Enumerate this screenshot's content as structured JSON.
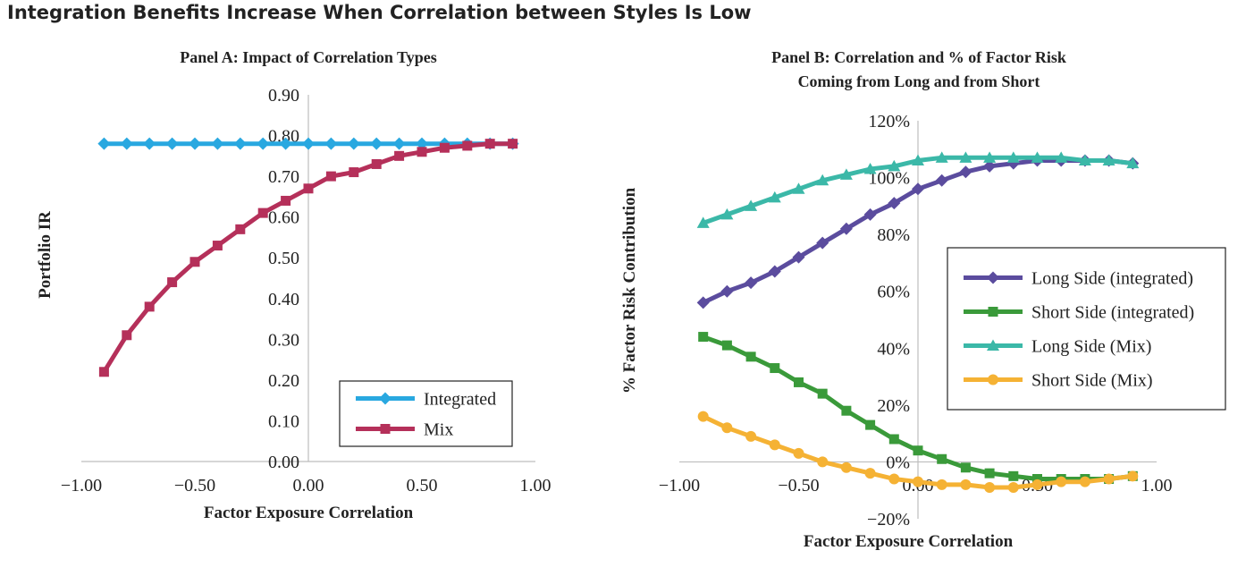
{
  "figure_title": "Integration Benefits Increase When Correlation between Styles Is Low",
  "chart_data": [
    {
      "type": "line",
      "title": "Panel A: Impact of Correlation Types",
      "xlabel": "Factor Exposure Correlation",
      "ylabel": "Portfolio IR",
      "xlim": [
        -1.0,
        1.0
      ],
      "ylim": [
        0.0,
        0.9
      ],
      "x_ticks": [
        "−1.00",
        "−0.50",
        "0.00",
        "0.50",
        "1.00"
      ],
      "y_ticks": [
        "0.00",
        "0.10",
        "0.20",
        "0.30",
        "0.40",
        "0.50",
        "0.60",
        "0.70",
        "0.80",
        "0.90"
      ],
      "grid": false,
      "legend_position": "bottom-right",
      "x": [
        -0.9,
        -0.8,
        -0.7,
        -0.6,
        -0.5,
        -0.4,
        -0.3,
        -0.2,
        -0.1,
        0.0,
        0.1,
        0.2,
        0.3,
        0.4,
        0.5,
        0.6,
        0.7,
        0.8,
        0.9
      ],
      "series": [
        {
          "name": "Integrated",
          "color": "#29a8e0",
          "marker": "diamond",
          "values": [
            0.78,
            0.78,
            0.78,
            0.78,
            0.78,
            0.78,
            0.78,
            0.78,
            0.78,
            0.78,
            0.78,
            0.78,
            0.78,
            0.78,
            0.78,
            0.78,
            0.78,
            0.78,
            0.78
          ]
        },
        {
          "name": "Mix",
          "color": "#b5305a",
          "marker": "square",
          "values": [
            0.22,
            0.31,
            0.38,
            0.44,
            0.49,
            0.53,
            0.57,
            0.61,
            0.64,
            0.67,
            0.7,
            0.71,
            0.73,
            0.75,
            0.76,
            0.77,
            0.775,
            0.78,
            0.78
          ]
        }
      ]
    },
    {
      "type": "line",
      "title": [
        "Panel B: Correlation and % of Factor Risk",
        "Coming from Long and from Short"
      ],
      "xlabel": "Factor Exposure Correlation",
      "ylabel": "% Factor Risk Contribution",
      "xlim": [
        -1.0,
        1.0
      ],
      "ylim": [
        -20,
        120
      ],
      "x_ticks": [
        "−1.00",
        "−0.50",
        "0.00",
        "0.50",
        "1.00"
      ],
      "y_ticks": [
        "−20%",
        "0%",
        "20%",
        "40%",
        "60%",
        "80%",
        "100%",
        "120%"
      ],
      "grid": false,
      "legend_position": "right",
      "x": [
        -0.9,
        -0.8,
        -0.7,
        -0.6,
        -0.5,
        -0.4,
        -0.3,
        -0.2,
        -0.1,
        0.0,
        0.1,
        0.2,
        0.3,
        0.4,
        0.5,
        0.6,
        0.7,
        0.8,
        0.9
      ],
      "series": [
        {
          "name": "Long Side (integrated)",
          "color": "#5b4c9e",
          "marker": "diamond",
          "values": [
            56,
            60,
            63,
            67,
            72,
            77,
            82,
            87,
            91,
            96,
            99,
            102,
            104,
            105,
            106,
            106,
            106,
            106,
            105
          ]
        },
        {
          "name": "Short Side (integrated)",
          "color": "#3a9a3a",
          "marker": "square",
          "values": [
            44,
            41,
            37,
            33,
            28,
            24,
            18,
            13,
            8,
            4,
            1,
            -2,
            -4,
            -5,
            -6,
            -6,
            -6,
            -6,
            -5
          ]
        },
        {
          "name": "Long Side (Mix)",
          "color": "#3bb8a8",
          "marker": "triangle",
          "values": [
            84,
            87,
            90,
            93,
            96,
            99,
            101,
            103,
            104,
            106,
            107,
            107,
            107,
            107,
            107,
            107,
            106,
            106,
            105
          ]
        },
        {
          "name": "Short Side (Mix)",
          "color": "#f5b234",
          "marker": "circle",
          "values": [
            16,
            12,
            9,
            6,
            3,
            0,
            -2,
            -4,
            -6,
            -7,
            -8,
            -8,
            -9,
            -9,
            -8,
            -7,
            -7,
            -6,
            -5
          ]
        }
      ]
    }
  ]
}
